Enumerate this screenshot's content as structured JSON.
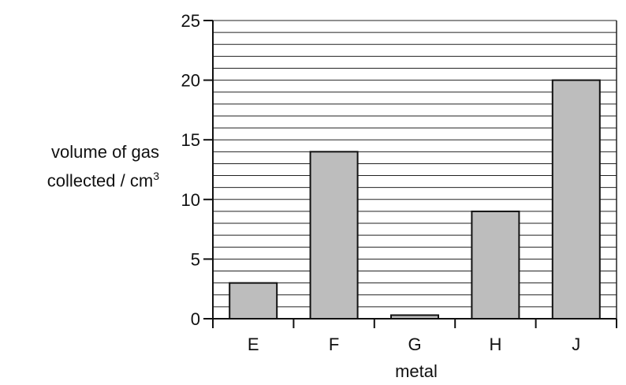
{
  "chart_data": {
    "type": "bar",
    "categories": [
      "E",
      "F",
      "G",
      "H",
      "J"
    ],
    "values": [
      3,
      14,
      0.3,
      9,
      20
    ],
    "xlabel": "metal",
    "ylabel_line1": "volume of gas",
    "ylabel_line2": "collected / cm",
    "ylabel_sup": "3",
    "ylim": [
      0,
      25
    ],
    "yticks": [
      0,
      5,
      10,
      15,
      20,
      25
    ],
    "grid_step": 1,
    "grid": true,
    "bar_color": "#bdbdbd",
    "edge_color": "#111111"
  }
}
